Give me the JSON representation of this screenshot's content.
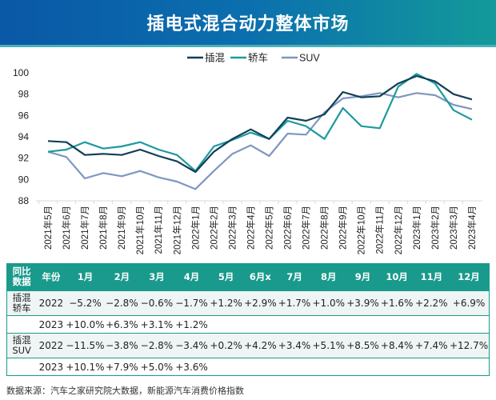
{
  "header": {
    "title": "插电式混合动力整体市场"
  },
  "chart_data": {
    "type": "line",
    "title": "",
    "xlabel": "",
    "ylabel": "",
    "ylim": [
      88,
      100
    ],
    "yticks": [
      88,
      90,
      92,
      94,
      96,
      98,
      100
    ],
    "legend_position": "top",
    "categories": [
      "2021年5月",
      "2021年6月",
      "2021年7月",
      "2021年8月",
      "2021年9月",
      "2021年10月",
      "2021年11月",
      "2021年12月",
      "2022年1月",
      "2022年2月",
      "2022年3月",
      "2022年4月",
      "2022年5月",
      "2022年6月",
      "2022年7月",
      "2022年8月",
      "2022年9月",
      "2022年10月",
      "2022年11月",
      "2022年12月",
      "2023年1月",
      "2023年2月",
      "2023年3月",
      "2023年4月"
    ],
    "series": [
      {
        "name": "插混",
        "color": "#123f56",
        "values": [
          93.6,
          93.5,
          92.3,
          92.4,
          92.3,
          92.8,
          92.2,
          91.7,
          90.7,
          92.6,
          93.8,
          94.7,
          93.8,
          95.8,
          95.5,
          96.1,
          98.2,
          97.7,
          97.8,
          99.0,
          99.7,
          99.2,
          98.0,
          97.5
        ]
      },
      {
        "name": "轿车",
        "color": "#1c9aa0",
        "values": [
          92.6,
          92.8,
          93.5,
          92.9,
          93.1,
          93.5,
          92.8,
          92.3,
          90.8,
          93.1,
          93.7,
          94.4,
          93.8,
          95.5,
          95.0,
          93.8,
          96.7,
          95.0,
          94.8,
          98.7,
          99.9,
          99.0,
          96.5,
          95.6
        ]
      },
      {
        "name": "SUV",
        "color": "#7f97c0",
        "values": [
          92.6,
          92.1,
          90.1,
          90.6,
          90.3,
          90.8,
          90.2,
          89.8,
          89.1,
          90.8,
          92.4,
          93.2,
          92.2,
          94.3,
          94.2,
          96.3,
          97.6,
          97.8,
          98.1,
          97.7,
          98.1,
          97.9,
          97.0,
          96.6
        ]
      }
    ]
  },
  "table": {
    "headers": [
      "同比\n数据",
      "年份",
      "1月",
      "2月",
      "3月",
      "4月",
      "5月",
      "6月x",
      "7月",
      "8月",
      "9月",
      "10月",
      "11月",
      "12月"
    ],
    "rows": [
      {
        "category": "插混\n轿车",
        "year": "2022",
        "values": [
          "−5.2%",
          "−2.8%",
          "−0.6%",
          "−1.7%",
          "+1.2%",
          "+2.9%",
          "+1.7%",
          "+1.0%",
          "+3.9%",
          "+1.6%",
          "+2.2%",
          "+6.9%"
        ]
      },
      {
        "category": "",
        "year": "2023",
        "values": [
          "+10.0%",
          "+6.3%",
          "+3.1%",
          "+1.2%",
          "",
          "",
          "",
          "",
          "",
          "",
          "",
          ""
        ]
      },
      {
        "category": "插混\nSUV",
        "year": "2022",
        "values": [
          "−11.5%",
          "−3.8%",
          "−2.8%",
          "−3.4%",
          "+0.2%",
          "+4.2%",
          "+3.4%",
          "+5.1%",
          "+8.5%",
          "+8.4%",
          "+7.4%",
          "+12.7%"
        ]
      },
      {
        "category": "",
        "year": "2023",
        "values": [
          "+10.1%",
          "+7.9%",
          "+5.0%",
          "+3.6%",
          "",
          "",
          "",
          "",
          "",
          "",
          "",
          ""
        ]
      }
    ]
  },
  "footer": {
    "source": "数据来源：汽车之家研究院大数据，新能源汽车消费价格指数"
  }
}
